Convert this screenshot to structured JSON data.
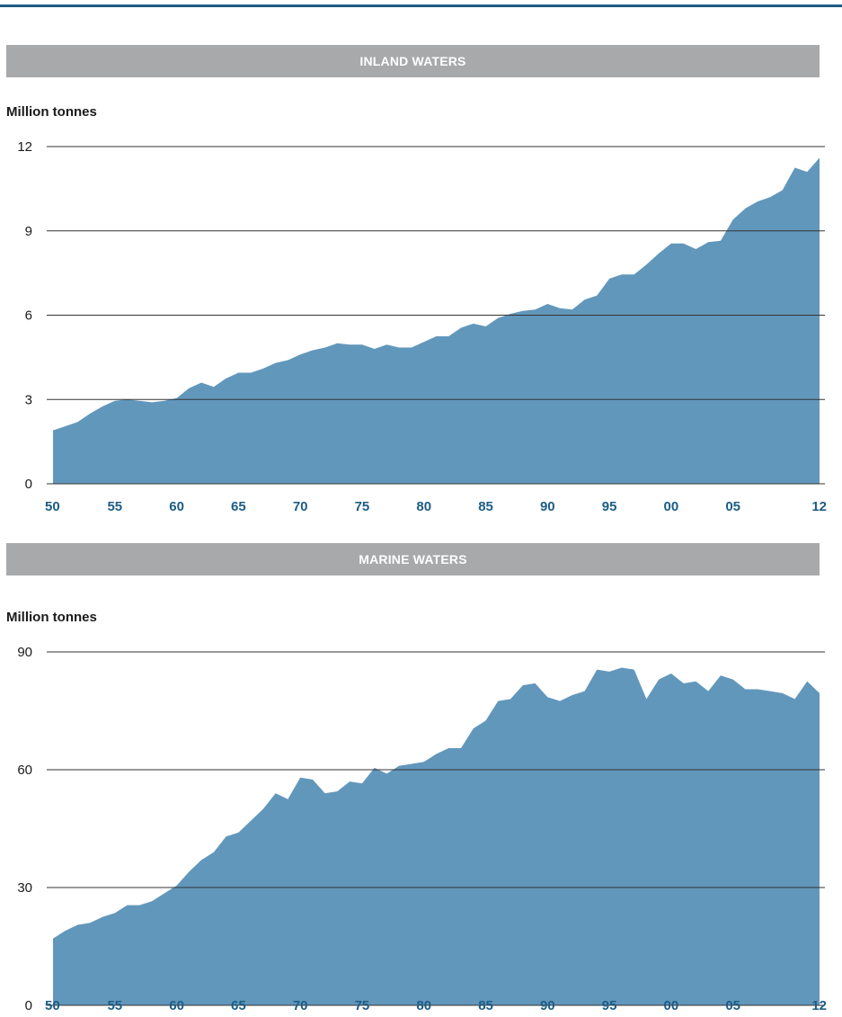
{
  "chart_data": [
    {
      "type": "area",
      "title": "INLAND WATERS",
      "ylabel": "Million tonnes",
      "xlabel": "",
      "ylim": [
        0,
        12
      ],
      "yticks": [
        0,
        3,
        6,
        9,
        12
      ],
      "xtick_labels": [
        "50",
        "55",
        "60",
        "65",
        "70",
        "75",
        "80",
        "85",
        "90",
        "95",
        "00",
        "05",
        "12"
      ],
      "xtick_years": [
        1950,
        1955,
        1960,
        1965,
        1970,
        1975,
        1980,
        1985,
        1990,
        1995,
        2000,
        2005,
        2012
      ],
      "grid": "horizontal",
      "color": "#6297bc",
      "x": [
        1950,
        1951,
        1952,
        1953,
        1954,
        1955,
        1956,
        1957,
        1958,
        1959,
        1960,
        1961,
        1962,
        1963,
        1964,
        1965,
        1966,
        1967,
        1968,
        1969,
        1970,
        1971,
        1972,
        1973,
        1974,
        1975,
        1976,
        1977,
        1978,
        1979,
        1980,
        1981,
        1982,
        1983,
        1984,
        1985,
        1986,
        1987,
        1988,
        1989,
        1990,
        1991,
        1992,
        1993,
        1994,
        1995,
        1996,
        1997,
        1998,
        1999,
        2000,
        2001,
        2002,
        2003,
        2004,
        2005,
        2006,
        2007,
        2008,
        2009,
        2010,
        2011,
        2012
      ],
      "values": [
        1.9,
        2.05,
        2.2,
        2.5,
        2.75,
        2.95,
        3.0,
        2.95,
        2.9,
        2.95,
        3.05,
        3.4,
        3.6,
        3.45,
        3.75,
        3.95,
        3.95,
        4.1,
        4.3,
        4.4,
        4.6,
        4.75,
        4.85,
        5.0,
        4.95,
        4.95,
        4.8,
        4.95,
        4.85,
        4.85,
        5.05,
        5.25,
        5.25,
        5.55,
        5.7,
        5.6,
        5.9,
        6.05,
        6.15,
        6.2,
        6.4,
        6.25,
        6.2,
        6.55,
        6.7,
        7.3,
        7.45,
        7.45,
        7.8,
        8.2,
        8.55,
        8.55,
        8.35,
        8.6,
        8.65,
        9.4,
        9.8,
        10.05,
        10.2,
        10.45,
        11.25,
        11.1,
        11.6
      ]
    },
    {
      "type": "area",
      "title": "MARINE WATERS",
      "ylabel": "Million tonnes",
      "xlabel": "",
      "ylim": [
        0,
        90
      ],
      "yticks": [
        0,
        30,
        60,
        90
      ],
      "xtick_labels": [
        "50",
        "55",
        "60",
        "65",
        "70",
        "75",
        "80",
        "85",
        "90",
        "95",
        "00",
        "05",
        "12"
      ],
      "xtick_years": [
        1950,
        1955,
        1960,
        1965,
        1970,
        1975,
        1980,
        1985,
        1990,
        1995,
        2000,
        2005,
        2012
      ],
      "grid": "horizontal",
      "color": "#6297bc",
      "x": [
        1950,
        1951,
        1952,
        1953,
        1954,
        1955,
        1956,
        1957,
        1958,
        1959,
        1960,
        1961,
        1962,
        1963,
        1964,
        1965,
        1966,
        1967,
        1968,
        1969,
        1970,
        1971,
        1972,
        1973,
        1974,
        1975,
        1976,
        1977,
        1978,
        1979,
        1980,
        1981,
        1982,
        1983,
        1984,
        1985,
        1986,
        1987,
        1988,
        1989,
        1990,
        1991,
        1992,
        1993,
        1994,
        1995,
        1996,
        1997,
        1998,
        1999,
        2000,
        2001,
        2002,
        2003,
        2004,
        2005,
        2006,
        2007,
        2008,
        2009,
        2010,
        2011,
        2012
      ],
      "values": [
        17,
        19,
        20.5,
        21,
        22.5,
        23.5,
        25.5,
        25.5,
        26.5,
        28.5,
        30.5,
        34,
        37,
        39,
        43,
        44,
        47,
        50,
        54,
        52.5,
        58,
        57.5,
        54,
        54.5,
        57,
        56.5,
        60.5,
        59,
        61,
        61.5,
        62,
        64,
        65.5,
        65.5,
        70.5,
        72.5,
        77.5,
        78,
        81.5,
        82,
        78.5,
        77.5,
        79,
        80,
        85.5,
        85,
        86,
        85.5,
        78,
        83,
        84.5,
        82,
        82.5,
        80,
        84,
        83,
        80.5,
        80.5,
        80,
        79.5,
        78,
        82.5,
        79.5
      ]
    }
  ]
}
